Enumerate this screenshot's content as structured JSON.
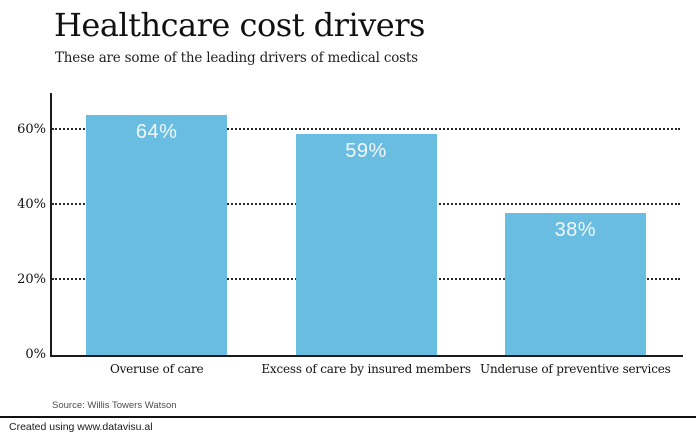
{
  "header": {
    "title": "Healthcare cost drivers",
    "subtitle": "These are some of the leading drivers of medical costs"
  },
  "chart_data": {
    "type": "bar",
    "title": "Healthcare cost drivers",
    "subtitle": "These are some of the leading drivers of medical costs",
    "categories": [
      "Overuse of care",
      "Excess of care by insured members",
      "Underuse of preventive services"
    ],
    "values": [
      64,
      59,
      38
    ],
    "value_labels": [
      "64%",
      "59%",
      "38%"
    ],
    "xlabel": "",
    "ylabel": "",
    "ylim": [
      0,
      70
    ],
    "y_ticks": [
      {
        "value": 0,
        "label": "0%"
      },
      {
        "value": 20,
        "label": "20%"
      },
      {
        "value": 40,
        "label": "40%"
      },
      {
        "value": 60,
        "label": "60%"
      }
    ],
    "grid": "horizontal-dotted",
    "legend": "none",
    "bar_color": "#69bde1",
    "value_label_color": "#f2f7fa",
    "axis_color": "#1a1a1a"
  },
  "source": {
    "text": "Source: Willis Towers Watson"
  },
  "footer": {
    "credit": "Created using www.datavisu.al"
  }
}
